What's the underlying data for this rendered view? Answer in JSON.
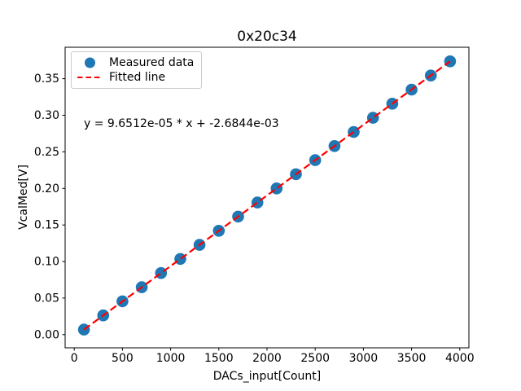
{
  "figure": {
    "background": "#ffffff"
  },
  "chart_data": {
    "type": "scatter",
    "title": "0x20c34",
    "xlabel": "DACs_input[Count]",
    "ylabel": "VcalMed[V]",
    "annotation": "y = 9.6512e-05 * x + -2.6844e-03",
    "grid": false,
    "xlim": [
      -95,
      4095
    ],
    "ylim": [
      -0.018,
      0.393
    ],
    "xticks": [
      0,
      500,
      1000,
      1500,
      2000,
      2500,
      3000,
      3500,
      4000
    ],
    "yticks": [
      0.0,
      0.05,
      0.1,
      0.15,
      0.2,
      0.25,
      0.3,
      0.35
    ],
    "legend_position": "upper-left",
    "series": [
      {
        "name": "Measured data",
        "type": "scatter",
        "marker": "circle",
        "color": "#1f77b4",
        "x": [
          100,
          300,
          500,
          700,
          900,
          1100,
          1300,
          1500,
          1700,
          1900,
          2100,
          2300,
          2500,
          2700,
          2900,
          3100,
          3300,
          3500,
          3700,
          3900
        ],
        "y": [
          0.007,
          0.0263,
          0.0456,
          0.0649,
          0.0842,
          0.1035,
          0.1228,
          0.1421,
          0.1614,
          0.1807,
          0.2,
          0.2193,
          0.2386,
          0.2579,
          0.2772,
          0.2965,
          0.3158,
          0.3351,
          0.3544,
          0.3737
        ]
      },
      {
        "name": "Fitted line",
        "type": "line",
        "style": "dashed",
        "color": "#ff0000",
        "x": [
          100,
          3900
        ],
        "y": [
          0.007,
          0.3737
        ]
      }
    ]
  },
  "colors": {
    "marker_blue": "#1f77b4",
    "line_red": "#ff0000",
    "legend_border": "#cccccc",
    "axes": "#000000"
  }
}
